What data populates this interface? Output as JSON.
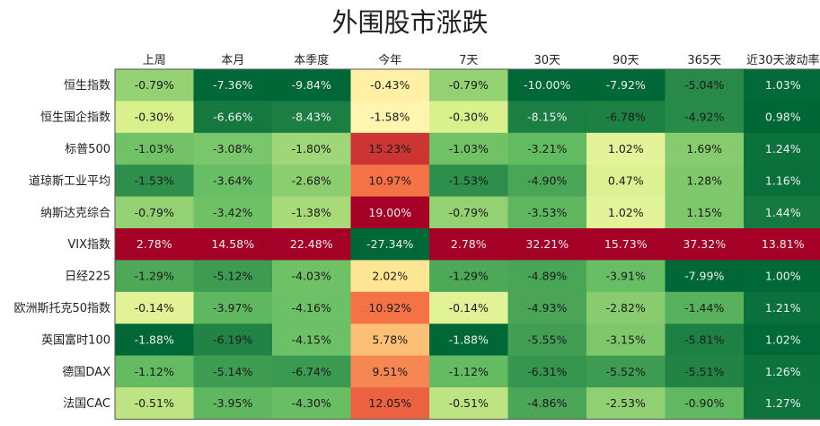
{
  "chart_data": {
    "type": "heatmap",
    "title": "外围股市涨跌",
    "columns": [
      "上周",
      "本月",
      "本季度",
      "今年",
      "7天",
      "30天",
      "90天",
      "365天",
      "近30天波动率"
    ],
    "rows": [
      "恒生指数",
      "恒生国企指数",
      "标普500",
      "道琼斯工业平均",
      "纳斯达克综合",
      "VIX指数",
      "日经225",
      "欧洲斯托克50指数",
      "英国富时100",
      "德国DAX",
      "法国CAC"
    ],
    "values": [
      [
        -0.79,
        -7.36,
        -9.84,
        -0.43,
        -0.79,
        -10.0,
        -7.92,
        -5.04,
        1.03
      ],
      [
        -0.3,
        -6.66,
        -8.43,
        -1.58,
        -0.3,
        -8.15,
        -6.78,
        -4.92,
        0.98
      ],
      [
        -1.03,
        -3.08,
        -1.8,
        15.23,
        -1.03,
        -3.21,
        1.02,
        1.69,
        1.24
      ],
      [
        -1.53,
        -3.64,
        -2.68,
        10.97,
        -1.53,
        -4.9,
        0.47,
        1.28,
        1.16
      ],
      [
        -0.79,
        -3.42,
        -1.38,
        19.0,
        -0.79,
        -3.53,
        1.02,
        1.15,
        1.44
      ],
      [
        2.78,
        14.58,
        22.48,
        -27.34,
        2.78,
        32.21,
        15.73,
        37.32,
        13.81
      ],
      [
        -1.29,
        -5.12,
        -4.03,
        2.02,
        -1.29,
        -4.89,
        -3.91,
        -7.99,
        1.0
      ],
      [
        -0.14,
        -3.97,
        -4.16,
        10.92,
        -0.14,
        -4.93,
        -2.82,
        -1.44,
        1.21
      ],
      [
        -1.88,
        -6.19,
        -4.15,
        5.78,
        -1.88,
        -5.55,
        -3.15,
        -5.81,
        1.02
      ],
      [
        -1.12,
        -5.14,
        -6.74,
        9.51,
        -1.12,
        -6.31,
        -5.52,
        -5.51,
        1.26
      ],
      [
        -0.51,
        -3.95,
        -4.3,
        12.05,
        -0.51,
        -4.86,
        -2.53,
        -0.9,
        1.27
      ]
    ],
    "value_suffix": "%",
    "color_scale": {
      "scheme": "per-column green-yellow-red",
      "low": "#006837",
      "mid": "#ffffbf",
      "high": "#a50026"
    }
  }
}
